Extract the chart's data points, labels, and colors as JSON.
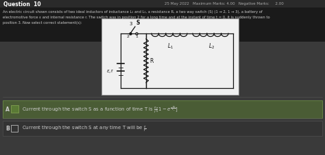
{
  "title": "Question  10",
  "header_right": "25 May 2022   Maximum Marks: 4.00   Negative Marks:     2.00",
  "question_text": "An electric circuit shown consists of two ideal inductors of inductance L₁ and L₂, a resistance R, a two way switch (S) (1 → 2, 1 → 3), a battery of electromotive force ε and internal resistance r. The switch was in position 2 for a long time and at the instant of time t = 0, it is suddenly thrown to position 3. Now select correct statement(s):",
  "option_A_text": "Current through the switch S as a function of time T is",
  "option_B_text": "Current through the switch S at any time T will be",
  "option_A_correct": true,
  "option_B_correct": false,
  "bg_color": "#3a3a3a",
  "title_bar_color": "#2a2a2a",
  "question_bg": "#1e1e1e",
  "option_A_bg": "#4a5c35",
  "option_B_bg": "#333333",
  "text_color": "#cccccc",
  "title_color": "#ffffff",
  "green_box_color": "#5a7a35",
  "white_box_color": "#cccccc",
  "circuit_bg": "#f0f0f0",
  "circuit_border": "#888888",
  "circuit_line": "#111111",
  "option_A_border": "#6a8a45",
  "option_B_border": "#555555"
}
